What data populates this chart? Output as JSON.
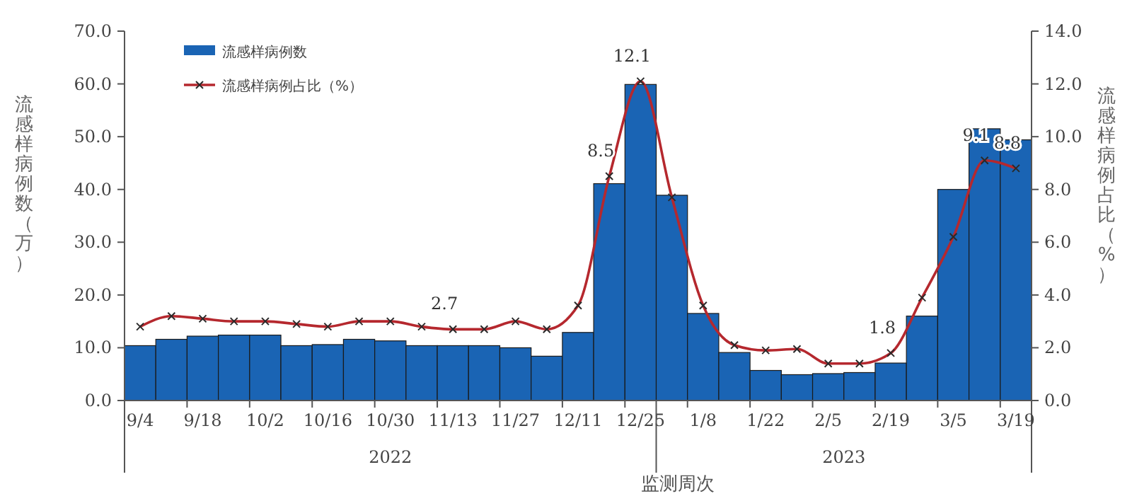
{
  "chart_data": {
    "type": "bar",
    "categories": [
      "9/4",
      null,
      "9/18",
      null,
      "10/2",
      null,
      "10/16",
      null,
      "10/30",
      null,
      "11/13",
      null,
      "11/27",
      null,
      "12/11",
      null,
      "12/25",
      null,
      "1/8",
      null,
      "1/22",
      null,
      "2/5",
      null,
      "2/19",
      null,
      "3/5",
      null,
      "3/19"
    ],
    "series": [
      {
        "name": "流感样病例数",
        "color": "#1a64b4",
        "values": [
          10.4,
          11.6,
          12.2,
          12.4,
          12.4,
          10.4,
          10.6,
          11.6,
          11.3,
          10.4,
          10.4,
          10.4,
          10.0,
          8.4,
          12.9,
          41.1,
          59.9,
          38.9,
          16.5,
          9.1,
          5.7,
          4.9,
          5.1,
          5.3,
          7.1,
          16.0,
          40.0,
          51.5,
          49.4
        ]
      },
      {
        "name": "流感样病例占比（%）",
        "type": "line",
        "axis": "y2",
        "color": "#b5282e",
        "marker": "cross",
        "values": [
          2.8,
          3.2,
          3.1,
          3.0,
          3.0,
          2.9,
          2.8,
          3.0,
          3.0,
          2.8,
          2.7,
          2.7,
          3.0,
          2.7,
          3.6,
          8.5,
          12.1,
          7.7,
          3.6,
          2.1,
          1.9,
          1.95,
          1.4,
          1.4,
          1.8,
          3.9,
          6.2,
          9.1,
          8.8
        ],
        "value_labels": [
          null,
          null,
          null,
          null,
          null,
          null,
          null,
          null,
          null,
          null,
          "2.7",
          null,
          null,
          null,
          null,
          "8.5",
          "12.1",
          null,
          null,
          null,
          null,
          null,
          null,
          null,
          "1.8",
          null,
          null,
          "9.1",
          "8.8"
        ]
      }
    ],
    "ylim": [
      0,
      70
    ],
    "yticks": [
      {
        "value": 0,
        "label": "0.0"
      },
      {
        "value": 10,
        "label": "10.0"
      },
      {
        "value": 20,
        "label": "20.0"
      },
      {
        "value": 30,
        "label": "30.0"
      },
      {
        "value": 40,
        "label": "40.0"
      },
      {
        "value": 50,
        "label": "50.0"
      },
      {
        "value": 60,
        "label": "60.0"
      },
      {
        "value": 70,
        "label": "70.0"
      }
    ],
    "y2lim": [
      0,
      14
    ],
    "y2ticks": [
      {
        "value": 0,
        "label": "0.0"
      },
      {
        "value": 2,
        "label": "2.0"
      },
      {
        "value": 4,
        "label": "4.0"
      },
      {
        "value": 6,
        "label": "6.0"
      },
      {
        "value": 8,
        "label": "8.0"
      },
      {
        "value": 10,
        "label": "10.0"
      },
      {
        "value": 12,
        "label": "12.0"
      },
      {
        "value": 14,
        "label": "14.0"
      }
    ],
    "ylabel": "流感样病例数（万）",
    "y2label": "流感样病例占比（%）",
    "xlabel": "监测周次",
    "annotations": [
      "2022",
      "2023"
    ],
    "legend": "top left",
    "grid": false
  }
}
